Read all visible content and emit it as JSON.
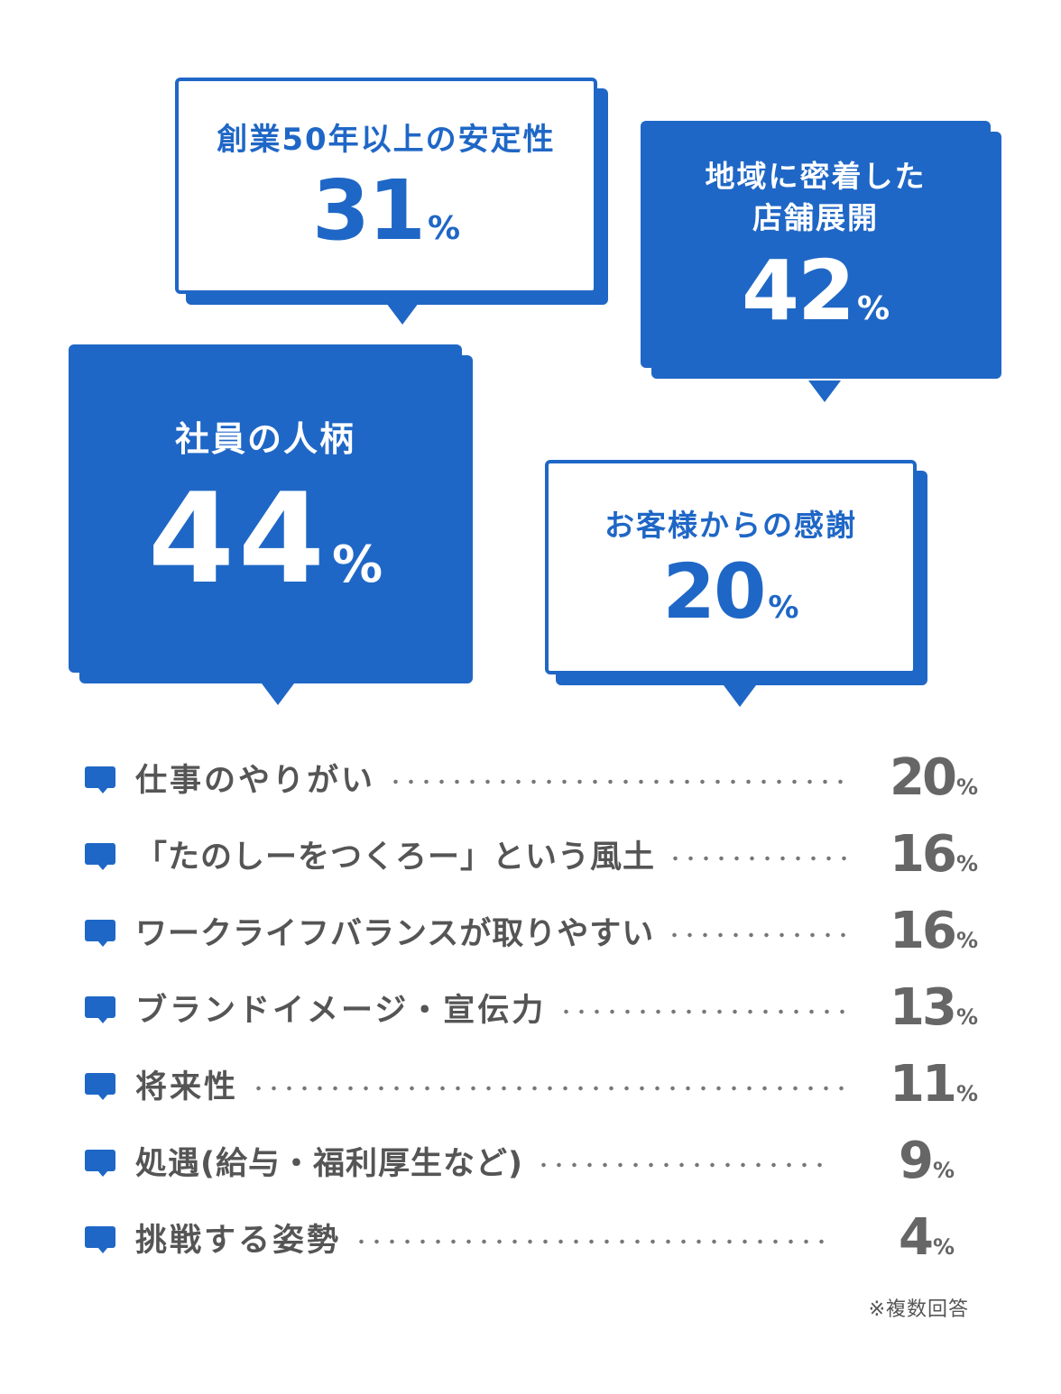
{
  "chart_data": {
    "type": "bar",
    "unit": "%",
    "highlighted": [
      {
        "label": "創業50年以上の安定性",
        "value": 31,
        "style": "outline"
      },
      {
        "label": "地域に密着した\n店舗展開",
        "value": 42,
        "style": "filled"
      },
      {
        "label": "社員の人柄",
        "value": 44,
        "style": "filled"
      },
      {
        "label": "お客様からの感謝",
        "value": 20,
        "style": "outline"
      }
    ],
    "categories": [
      "仕事のやりがい",
      "「たのしーをつくろー」という風土",
      "ワークライフバランスが取りやすい",
      "ブランドイメージ・宣伝力",
      "将来性",
      "処遇(給与・福利厚生など)",
      "挑戦する姿勢"
    ],
    "values": [
      20,
      16,
      16,
      13,
      11,
      9,
      4
    ],
    "note": "※複数回答"
  },
  "colors": {
    "accent": "#1f67c6",
    "text_gray": "#555555",
    "number_gray": "#666666"
  },
  "icons": {
    "row_icon": "speech-bubble-icon"
  }
}
